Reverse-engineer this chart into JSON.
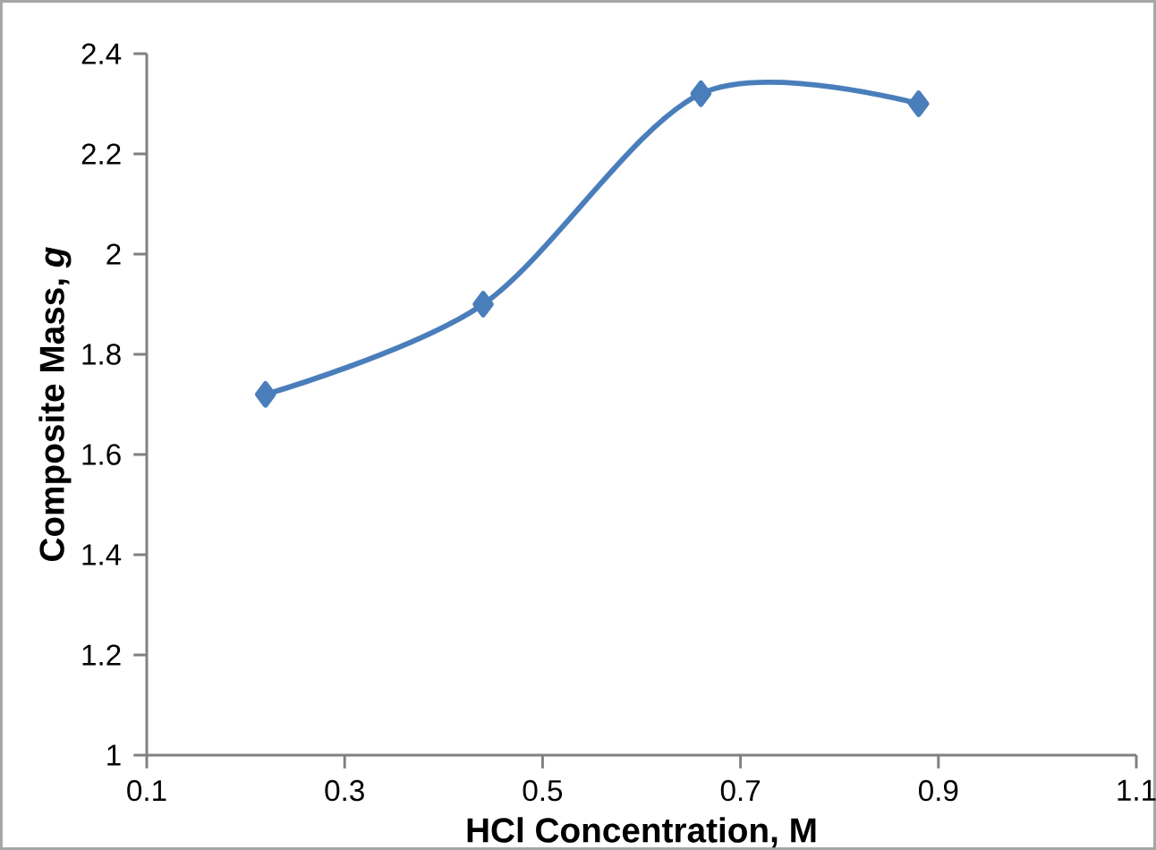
{
  "chart_data": {
    "type": "line",
    "xlabel": "HCl Concentration, M",
    "ylabel": "Composite Mass, *g*",
    "x": [
      0.22,
      0.44,
      0.66,
      0.88
    ],
    "series": [
      {
        "color": "#4a7ebb",
        "values": [
          1.72,
          1.9,
          2.32,
          2.3
        ]
      }
    ],
    "xlim": [
      0.1,
      1.1
    ],
    "xticks": [
      0.1,
      0.3,
      0.5,
      0.7,
      0.9,
      1.1
    ],
    "ylim": [
      1,
      2.4
    ],
    "yticks": [
      1,
      1.2,
      1.4,
      1.6,
      1.8,
      2,
      2.2,
      2.4
    ],
    "marker": "diamond",
    "line_style": "solid",
    "grid": false
  }
}
